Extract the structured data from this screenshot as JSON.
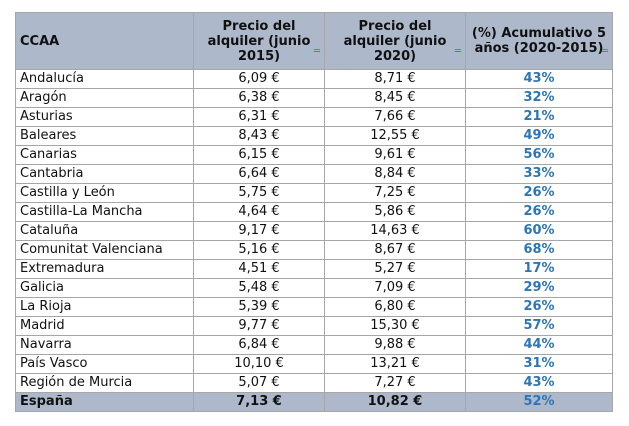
{
  "headers": [
    "CCAA",
    "Precio del alquiler (junio 2015)",
    "Precio del alquiler (junio 2020)",
    "(%) Acumulativo 5 años (2020-2015)"
  ],
  "rows": [
    [
      "Andalucía",
      "6,09 €",
      "8,71 €",
      "43%"
    ],
    [
      "Aragón",
      "6,38 €",
      "8,45 €",
      "32%"
    ],
    [
      "Asturias",
      "6,31 €",
      "7,66 €",
      "21%"
    ],
    [
      "Baleares",
      "8,43 €",
      "12,55 €",
      "49%"
    ],
    [
      "Canarias",
      "6,15 €",
      "9,61 €",
      "56%"
    ],
    [
      "Cantabria",
      "6,64 €",
      "8,84 €",
      "33%"
    ],
    [
      "Castilla y León",
      "5,75 €",
      "7,25 €",
      "26%"
    ],
    [
      "Castilla-La Mancha",
      "4,64 €",
      "5,86 €",
      "26%"
    ],
    [
      "Cataluña",
      "9,17 €",
      "14,63 €",
      "60%"
    ],
    [
      "Comunitat Valenciana",
      "5,16 €",
      "8,67 €",
      "68%"
    ],
    [
      "Extremadura",
      "4,51 €",
      "5,27 €",
      "17%"
    ],
    [
      "Galicia",
      "5,48 €",
      "7,09 €",
      "29%"
    ],
    [
      "La Rioja",
      "5,39 €",
      "6,80 €",
      "26%"
    ],
    [
      "Madrid",
      "9,77 €",
      "15,30 €",
      "57%"
    ],
    [
      "Navarra",
      "6,84 €",
      "9,88 €",
      "44%"
    ],
    [
      "País Vasco",
      "10,10 €",
      "13,21 €",
      "31%"
    ],
    [
      "Región de Murcia",
      "5,07 €",
      "7,27 €",
      "43%"
    ]
  ],
  "total": [
    "España",
    "7,13 €",
    "10,82 €",
    "52%"
  ],
  "colors": {
    "header_bg": "#adb9ca",
    "percent": "#2e75b6"
  }
}
